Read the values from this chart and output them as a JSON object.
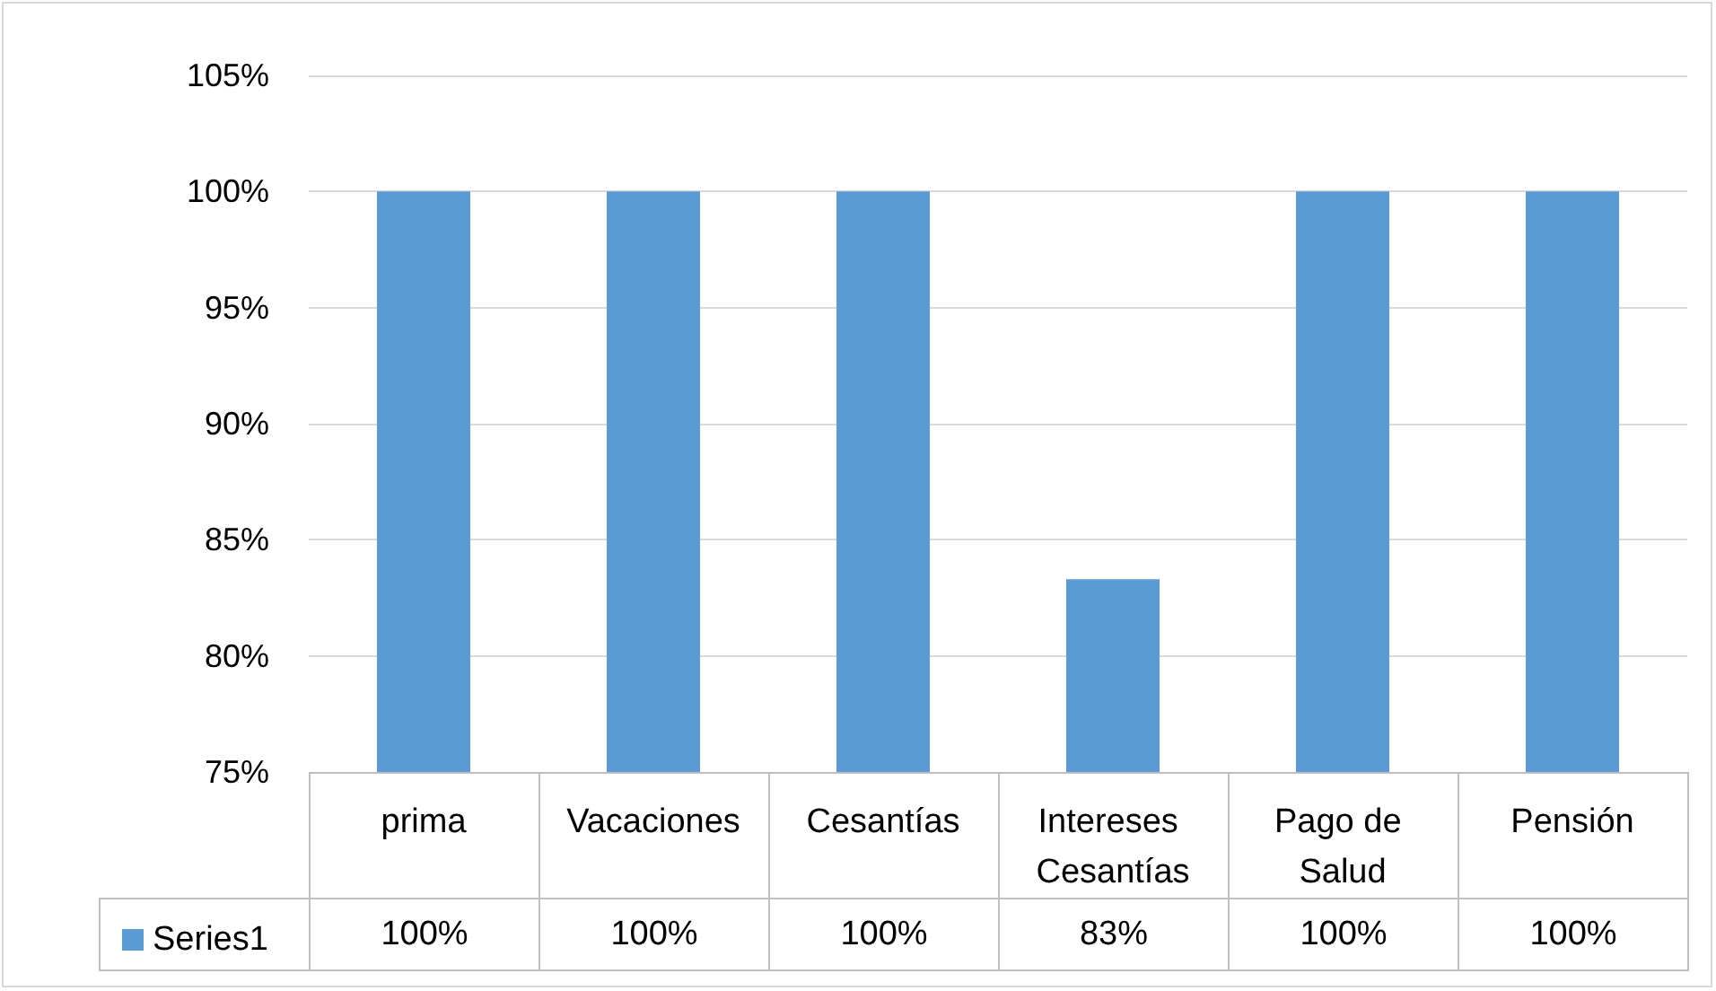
{
  "chart_data": {
    "type": "bar",
    "categories": [
      "prima",
      "Vacaciones",
      "Cesantías",
      "Intereses Cesantías",
      "Pago de Salud",
      "Pensión"
    ],
    "series": [
      {
        "name": "Series1",
        "color": "#5b9bd5",
        "values": [
          100,
          100,
          100,
          83.3,
          100,
          100
        ],
        "value_labels": [
          "100%",
          "100%",
          "100%",
          "83%",
          "100%",
          "100%"
        ]
      }
    ],
    "ylim": [
      75,
      105
    ],
    "yticks": [
      {
        "value": 75,
        "label": "75%"
      },
      {
        "value": 80,
        "label": "80%"
      },
      {
        "value": 85,
        "label": "85%"
      },
      {
        "value": 90,
        "label": "90%"
      },
      {
        "value": 95,
        "label": "95%"
      },
      {
        "value": 100,
        "label": "100%"
      },
      {
        "value": 105,
        "label": "105%"
      }
    ],
    "grid": "y",
    "legend": "bottom left"
  }
}
